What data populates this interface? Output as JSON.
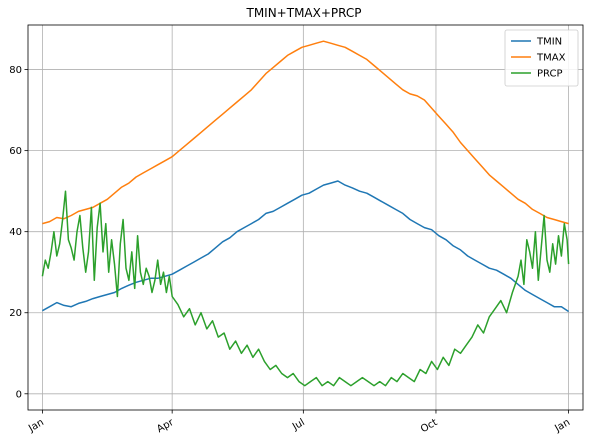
{
  "chart_data": {
    "type": "line",
    "title": "TMIN+TMAX+PRCP",
    "xlabel": "",
    "ylabel": "",
    "x_domain_days": [
      -10,
      375
    ],
    "ylim": [
      -4,
      91
    ],
    "grid": true,
    "legend_position": "top-right",
    "x_ticks": [
      {
        "label": "Jan",
        "day": 0
      },
      {
        "label": "Apr",
        "day": 90
      },
      {
        "label": "Jul",
        "day": 181
      },
      {
        "label": "Oct",
        "day": 273
      },
      {
        "label": "Jan",
        "day": 365
      }
    ],
    "y_ticks": [
      0,
      20,
      40,
      60,
      80
    ],
    "series": [
      {
        "name": "TMIN",
        "color": "#1f77b4",
        "x": [
          0,
          5,
          10,
          15,
          20,
          25,
          30,
          35,
          40,
          45,
          50,
          55,
          60,
          65,
          70,
          75,
          80,
          85,
          90,
          95,
          100,
          105,
          110,
          115,
          120,
          125,
          130,
          135,
          140,
          145,
          150,
          155,
          160,
          165,
          170,
          175,
          180,
          185,
          190,
          195,
          200,
          205,
          210,
          215,
          220,
          225,
          230,
          235,
          240,
          245,
          250,
          255,
          260,
          265,
          270,
          275,
          280,
          285,
          290,
          295,
          300,
          305,
          310,
          315,
          320,
          325,
          330,
          335,
          340,
          345,
          350,
          355,
          360,
          365
        ],
        "values": [
          20.5,
          21.5,
          22.5,
          21.8,
          21.5,
          22.3,
          22.8,
          23.5,
          24.0,
          24.5,
          25.0,
          26.0,
          26.8,
          27.5,
          28.0,
          28.5,
          28.5,
          29.0,
          29.5,
          30.5,
          31.5,
          32.5,
          33.5,
          34.5,
          36.0,
          37.5,
          38.5,
          40.0,
          41.0,
          42.0,
          43.0,
          44.5,
          45.0,
          46.0,
          47.0,
          48.0,
          49.0,
          49.5,
          50.5,
          51.5,
          52.0,
          52.5,
          51.5,
          50.8,
          50.0,
          49.5,
          48.5,
          47.5,
          46.5,
          45.5,
          44.5,
          43.0,
          42.0,
          41.0,
          40.5,
          39.0,
          38.0,
          36.5,
          35.5,
          34.0,
          33.0,
          32.0,
          31.0,
          30.5,
          29.5,
          28.5,
          27.0,
          25.5,
          24.5,
          23.5,
          22.5,
          21.5,
          21.5,
          20.3
        ]
      },
      {
        "name": "TMAX",
        "color": "#ff7f0e",
        "x": [
          0,
          5,
          10,
          15,
          20,
          25,
          30,
          35,
          40,
          45,
          50,
          55,
          60,
          65,
          70,
          75,
          80,
          85,
          90,
          95,
          100,
          105,
          110,
          115,
          120,
          125,
          130,
          135,
          140,
          145,
          150,
          155,
          160,
          165,
          170,
          175,
          180,
          185,
          190,
          195,
          200,
          205,
          210,
          215,
          220,
          225,
          230,
          235,
          240,
          245,
          250,
          255,
          260,
          265,
          270,
          275,
          280,
          285,
          290,
          295,
          300,
          305,
          310,
          315,
          320,
          325,
          330,
          335,
          340,
          345,
          350,
          355,
          360,
          365
        ],
        "values": [
          42.0,
          42.5,
          43.5,
          43.2,
          44.0,
          45.0,
          45.5,
          46.0,
          47.0,
          48.0,
          49.5,
          51.0,
          52.0,
          53.5,
          54.5,
          55.5,
          56.5,
          57.5,
          58.5,
          60.0,
          61.5,
          63.0,
          64.5,
          66.0,
          67.5,
          69.0,
          70.5,
          72.0,
          73.5,
          75.0,
          77.0,
          79.0,
          80.5,
          82.0,
          83.5,
          84.5,
          85.5,
          86.0,
          86.5,
          87.0,
          86.5,
          86.0,
          85.5,
          84.5,
          83.5,
          82.5,
          81.0,
          79.5,
          78.0,
          76.5,
          75.0,
          74.0,
          73.5,
          72.5,
          70.5,
          68.5,
          66.5,
          64.5,
          62.0,
          60.0,
          58.0,
          56.0,
          54.0,
          52.5,
          51.0,
          49.5,
          48.0,
          47.0,
          45.5,
          44.5,
          43.5,
          43.0,
          42.5,
          42.0
        ]
      },
      {
        "name": "PRCP",
        "color": "#2ca02c",
        "x": [
          0,
          2,
          4,
          6,
          8,
          10,
          12,
          14,
          16,
          18,
          20,
          22,
          24,
          26,
          28,
          30,
          32,
          34,
          36,
          38,
          40,
          42,
          44,
          46,
          48,
          50,
          52,
          54,
          56,
          58,
          60,
          62,
          64,
          66,
          68,
          70,
          72,
          74,
          76,
          78,
          80,
          82,
          84,
          86,
          88,
          90,
          94,
          98,
          102,
          106,
          110,
          114,
          118,
          122,
          126,
          130,
          134,
          138,
          142,
          146,
          150,
          154,
          158,
          162,
          166,
          170,
          174,
          178,
          182,
          186,
          190,
          194,
          198,
          202,
          206,
          210,
          214,
          218,
          222,
          226,
          230,
          234,
          238,
          242,
          246,
          250,
          254,
          258,
          262,
          266,
          270,
          274,
          278,
          282,
          286,
          290,
          294,
          298,
          302,
          306,
          310,
          314,
          318,
          322,
          326,
          330,
          332,
          334,
          336,
          338,
          340,
          342,
          344,
          346,
          348,
          350,
          352,
          354,
          356,
          358,
          360,
          362,
          364,
          365
        ],
        "values": [
          29,
          33,
          31,
          35,
          40,
          34,
          37,
          43,
          50,
          38,
          36,
          33,
          40,
          44,
          36,
          30,
          35,
          46,
          28,
          41,
          47,
          35,
          42,
          30,
          38,
          32,
          24,
          37,
          43,
          31,
          28,
          35,
          26,
          39,
          30,
          27,
          31,
          29,
          25,
          28,
          33,
          27,
          30,
          25,
          29,
          24,
          22,
          19,
          21,
          17,
          20,
          16,
          18,
          14,
          15,
          11,
          13,
          10,
          12,
          9,
          11,
          8,
          6,
          7,
          5,
          4,
          5,
          3,
          2,
          3,
          4,
          2,
          3,
          2,
          4,
          3,
          2,
          3,
          4,
          3,
          2,
          3,
          2,
          4,
          3,
          5,
          4,
          3,
          6,
          5,
          8,
          6,
          9,
          7,
          11,
          10,
          12,
          14,
          17,
          15,
          19,
          21,
          23,
          20,
          25,
          29,
          33,
          27,
          38,
          35,
          31,
          40,
          28,
          36,
          44,
          33,
          30,
          37,
          32,
          39,
          34,
          42,
          38,
          32
        ]
      }
    ]
  }
}
